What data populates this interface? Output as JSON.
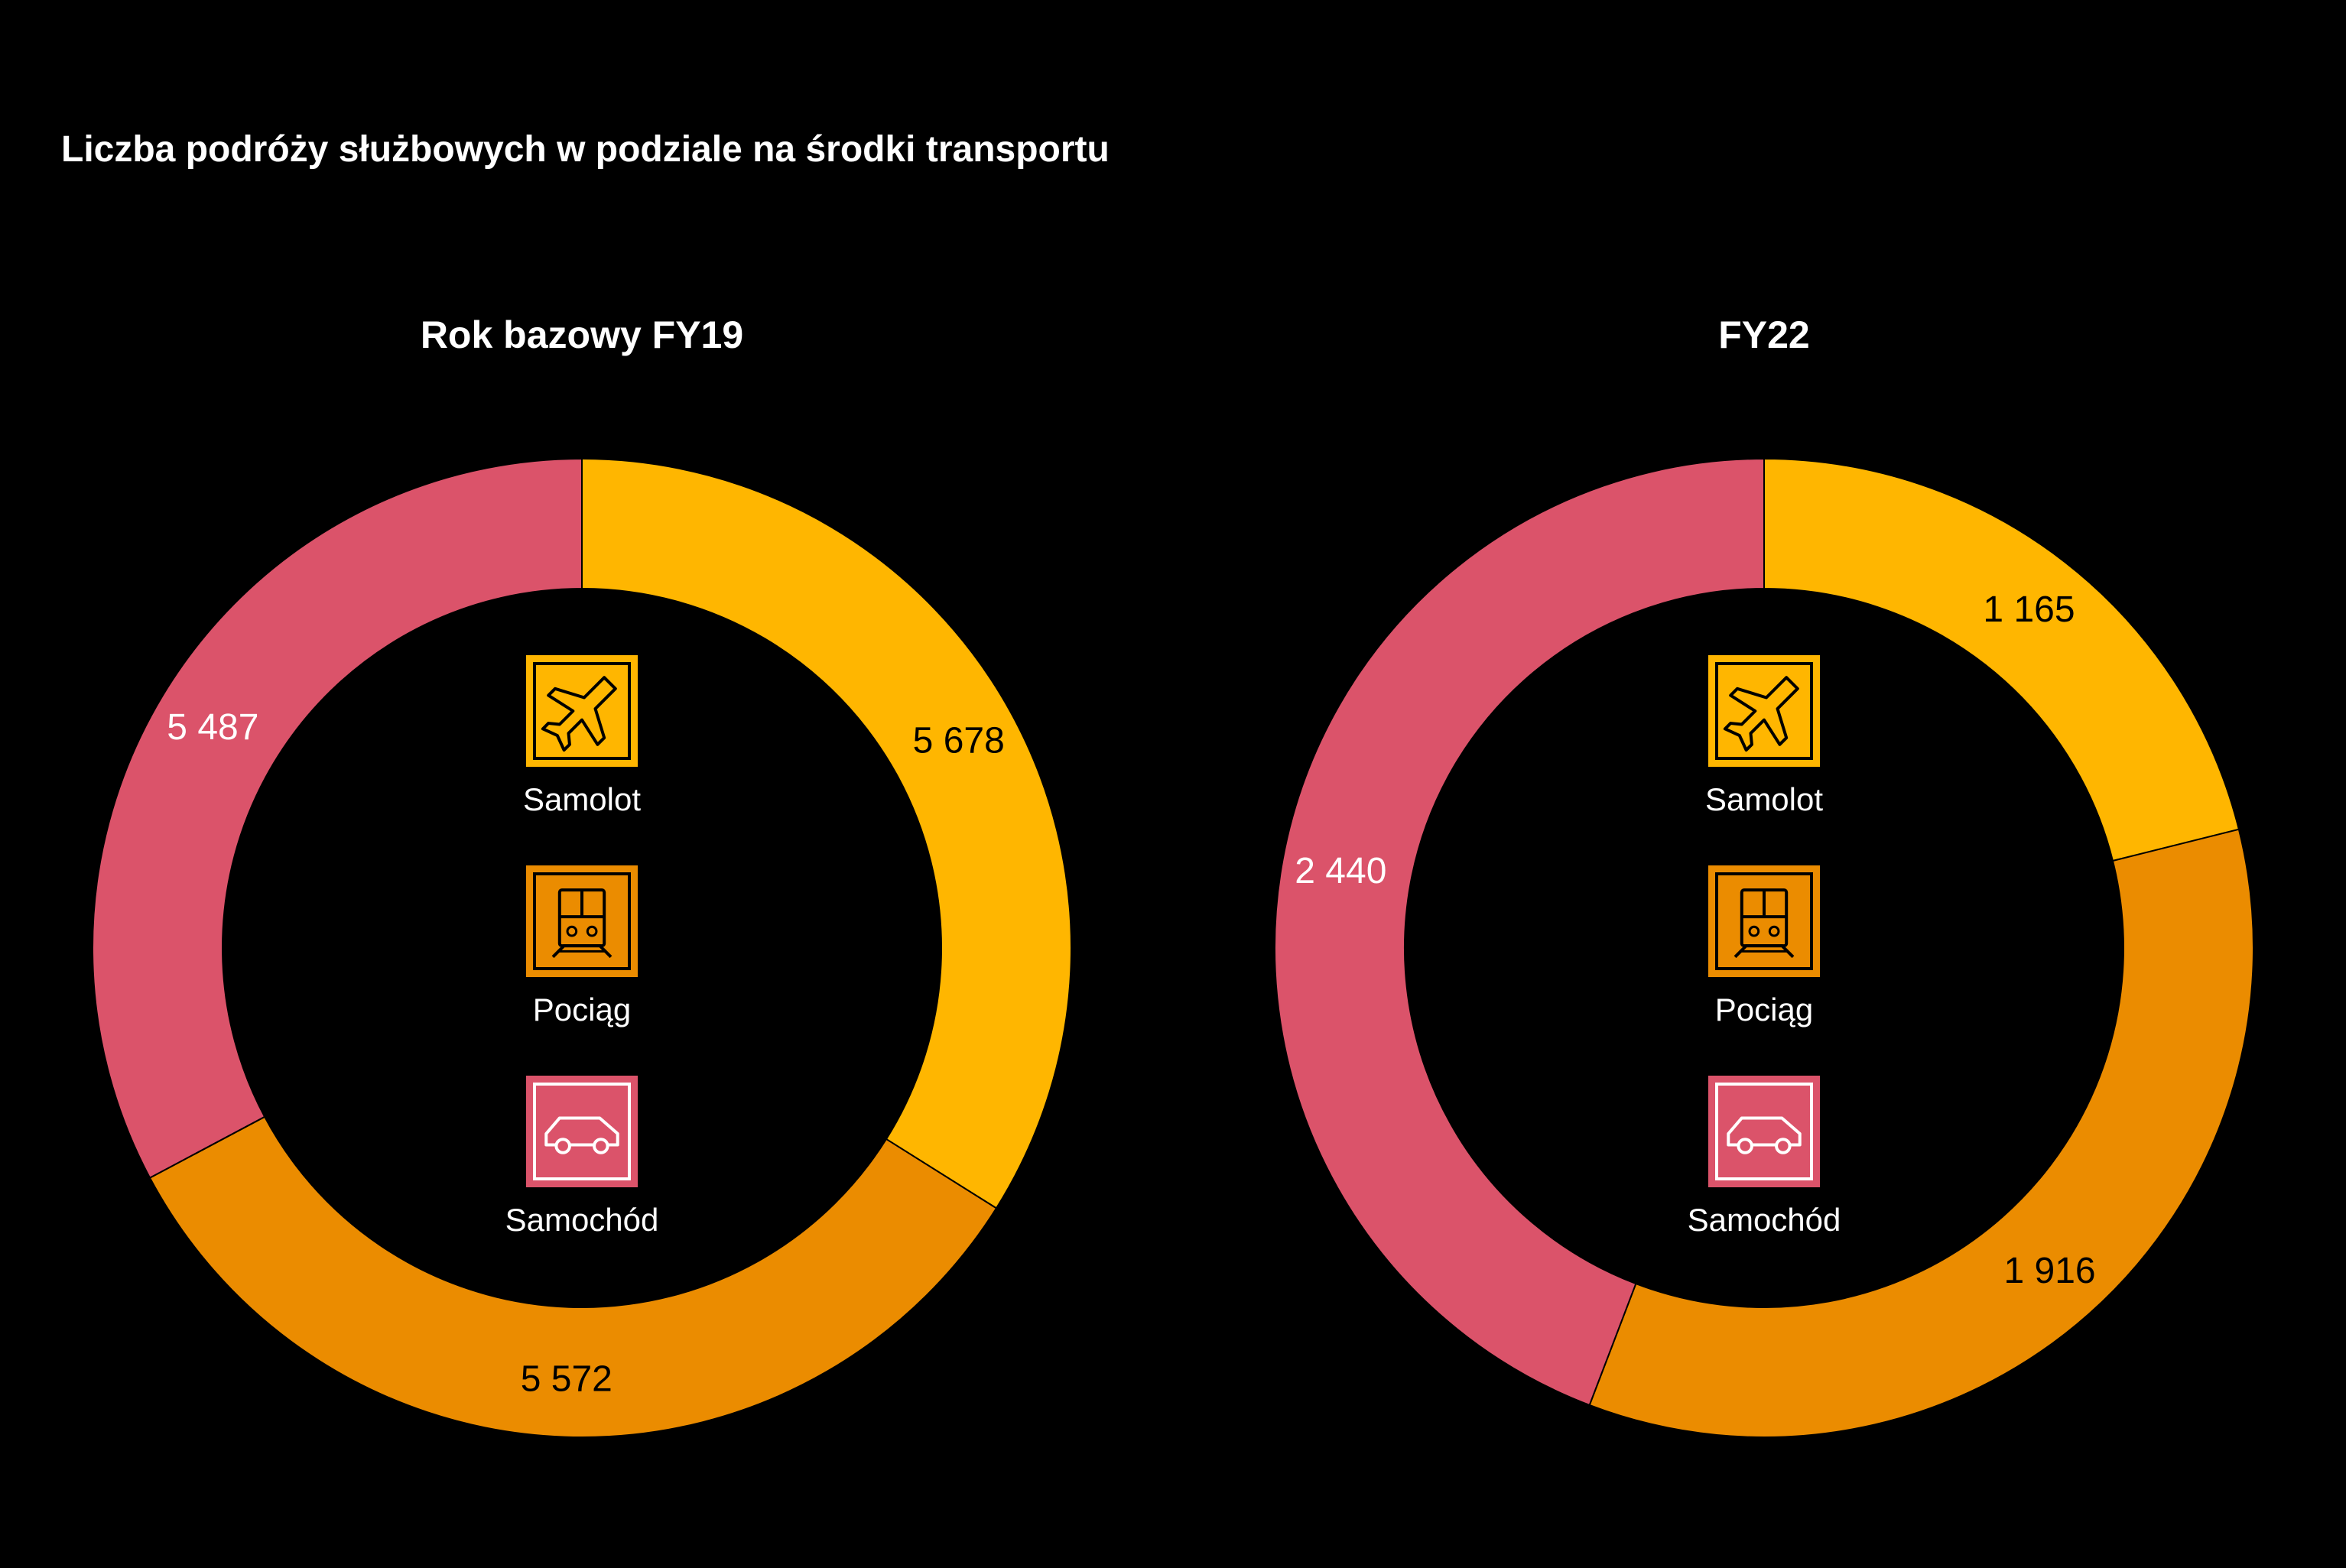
{
  "title": "Liczba podróży służbowych w podziale na środki transportu",
  "legend": [
    {
      "key": "samolot",
      "label": "Samolot",
      "icon": "airplane-icon",
      "color": "#FFB600"
    },
    {
      "key": "pociag",
      "label": "Pociąg",
      "icon": "train-icon",
      "color": "#EB8C00"
    },
    {
      "key": "samochod",
      "label": "Samochód",
      "icon": "car-icon",
      "color": "#DB536A"
    }
  ],
  "chart_data": [
    {
      "type": "pie",
      "title": "Rok bazowy FY19",
      "categories": [
        "Samolot",
        "Pociąg",
        "Samochód"
      ],
      "values": [
        5678,
        5572,
        5487
      ],
      "value_labels": [
        "5 678",
        "5 572",
        "5 487"
      ],
      "colors": [
        "#FFB600",
        "#EB8C00",
        "#DB536A"
      ],
      "label_colors": [
        "#000000",
        "#000000",
        "#ffffff"
      ]
    },
    {
      "type": "pie",
      "title": "FY22",
      "categories": [
        "Samolot",
        "Pociąg",
        "Samochód"
      ],
      "values": [
        1165,
        1916,
        2440
      ],
      "value_labels": [
        "1 165",
        "1 916",
        "2 440"
      ],
      "colors": [
        "#FFB600",
        "#EB8C00",
        "#DB536A"
      ],
      "label_colors": [
        "#000000",
        "#000000",
        "#ffffff"
      ]
    }
  ]
}
